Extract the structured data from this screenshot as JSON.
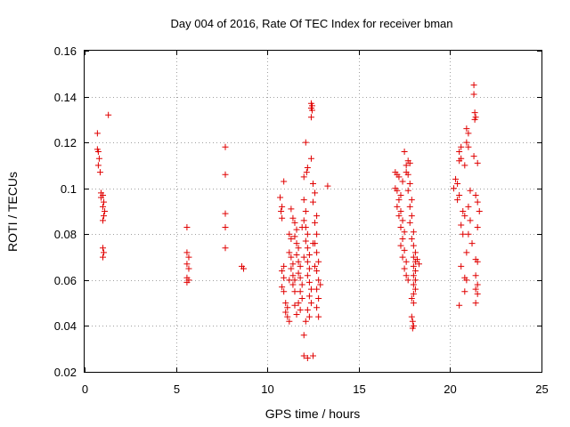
{
  "chart_data": {
    "type": "scatter",
    "title": "Day 004 of 2016, Rate Of TEC Index for receiver bman",
    "xlabel": "GPS time / hours",
    "ylabel": "ROTI / TECUs",
    "xlim": [
      0,
      25
    ],
    "ylim": [
      0.02,
      0.16
    ],
    "x_ticks": [
      0,
      5,
      10,
      15,
      20,
      25
    ],
    "y_ticks": [
      0.02,
      0.04,
      0.06,
      0.08,
      0.1,
      0.12,
      0.14,
      0.16
    ],
    "x_tick_labels": [
      "0",
      "5",
      "10",
      "15",
      "20",
      "25"
    ],
    "y_tick_labels": [
      "0.02",
      "0.04",
      "0.06",
      "0.08",
      "0.1",
      "0.12",
      "0.14",
      "0.16"
    ],
    "grid": true,
    "marker": "+",
    "color": "#e00000",
    "series": [
      {
        "name": "ROTI",
        "points": [
          [
            0.7,
            0.124
          ],
          [
            0.7,
            0.117
          ],
          [
            0.75,
            0.116
          ],
          [
            0.8,
            0.113
          ],
          [
            0.75,
            0.11
          ],
          [
            0.85,
            0.107
          ],
          [
            0.9,
            0.098
          ],
          [
            1.0,
            0.097
          ],
          [
            0.9,
            0.096
          ],
          [
            1.05,
            0.094
          ],
          [
            1.0,
            0.092
          ],
          [
            1.1,
            0.09
          ],
          [
            1.05,
            0.088
          ],
          [
            1.0,
            0.086
          ],
          [
            1.0,
            0.074
          ],
          [
            1.05,
            0.072
          ],
          [
            1.0,
            0.07
          ],
          [
            1.3,
            0.132
          ],
          [
            5.6,
            0.083
          ],
          [
            5.6,
            0.072
          ],
          [
            5.7,
            0.07
          ],
          [
            5.6,
            0.067
          ],
          [
            5.7,
            0.065
          ],
          [
            5.6,
            0.061
          ],
          [
            5.7,
            0.06
          ],
          [
            5.6,
            0.059
          ],
          [
            7.7,
            0.118
          ],
          [
            7.7,
            0.106
          ],
          [
            7.7,
            0.089
          ],
          [
            7.7,
            0.083
          ],
          [
            7.7,
            0.074
          ],
          [
            8.6,
            0.066
          ],
          [
            8.7,
            0.065
          ],
          [
            10.7,
            0.096
          ],
          [
            10.8,
            0.092
          ],
          [
            10.75,
            0.09
          ],
          [
            10.9,
            0.103
          ],
          [
            10.8,
            0.087
          ],
          [
            10.9,
            0.066
          ],
          [
            10.8,
            0.064
          ],
          [
            10.9,
            0.061
          ],
          [
            10.8,
            0.057
          ],
          [
            10.9,
            0.055
          ],
          [
            11.0,
            0.05
          ],
          [
            11.1,
            0.048
          ],
          [
            11.0,
            0.046
          ],
          [
            11.1,
            0.044
          ],
          [
            11.2,
            0.042
          ],
          [
            11.2,
            0.08
          ],
          [
            11.3,
            0.078
          ],
          [
            11.2,
            0.072
          ],
          [
            11.3,
            0.07
          ],
          [
            11.4,
            0.067
          ],
          [
            11.3,
            0.065
          ],
          [
            11.4,
            0.062
          ],
          [
            11.5,
            0.06
          ],
          [
            11.4,
            0.058
          ],
          [
            11.5,
            0.055
          ],
          [
            11.3,
            0.091
          ],
          [
            11.4,
            0.087
          ],
          [
            11.5,
            0.085
          ],
          [
            11.6,
            0.082
          ],
          [
            11.5,
            0.079
          ],
          [
            11.6,
            0.076
          ],
          [
            11.7,
            0.074
          ],
          [
            11.6,
            0.071
          ],
          [
            11.7,
            0.068
          ],
          [
            11.8,
            0.066
          ],
          [
            11.7,
            0.063
          ],
          [
            11.8,
            0.061
          ],
          [
            11.9,
            0.058
          ],
          [
            11.8,
            0.055
          ],
          [
            11.9,
            0.052
          ],
          [
            11.7,
            0.05
          ],
          [
            11.8,
            0.047
          ],
          [
            11.6,
            0.045
          ],
          [
            11.5,
            0.049
          ],
          [
            12.0,
            0.095
          ],
          [
            12.1,
            0.09
          ],
          [
            12.0,
            0.086
          ],
          [
            12.1,
            0.083
          ],
          [
            12.2,
            0.08
          ],
          [
            12.1,
            0.077
          ],
          [
            12.2,
            0.074
          ],
          [
            12.3,
            0.071
          ],
          [
            12.2,
            0.068
          ],
          [
            12.3,
            0.065
          ],
          [
            12.2,
            0.062
          ],
          [
            12.3,
            0.059
          ],
          [
            12.4,
            0.056
          ],
          [
            12.3,
            0.053
          ],
          [
            12.4,
            0.05
          ],
          [
            12.2,
            0.047
          ],
          [
            12.3,
            0.044
          ],
          [
            12.1,
            0.042
          ],
          [
            12.0,
            0.036
          ],
          [
            12.1,
            0.12
          ],
          [
            12.2,
            0.109
          ],
          [
            12.15,
            0.107
          ],
          [
            12.0,
            0.105
          ],
          [
            12.4,
            0.113
          ],
          [
            12.4,
            0.137
          ],
          [
            12.45,
            0.136
          ],
          [
            12.4,
            0.135
          ],
          [
            12.45,
            0.134
          ],
          [
            12.4,
            0.131
          ],
          [
            12.5,
            0.102
          ],
          [
            12.6,
            0.098
          ],
          [
            12.5,
            0.094
          ],
          [
            12.7,
            0.088
          ],
          [
            12.6,
            0.085
          ],
          [
            12.7,
            0.08
          ],
          [
            12.6,
            0.076
          ],
          [
            12.7,
            0.072
          ],
          [
            12.8,
            0.068
          ],
          [
            12.7,
            0.064
          ],
          [
            12.8,
            0.06
          ],
          [
            12.7,
            0.056
          ],
          [
            12.8,
            0.052
          ],
          [
            12.7,
            0.048
          ],
          [
            12.8,
            0.044
          ],
          [
            12.0,
            0.027
          ],
          [
            12.2,
            0.026
          ],
          [
            12.5,
            0.027
          ],
          [
            13.3,
            0.101
          ],
          [
            11.9,
            0.083
          ],
          [
            12.5,
            0.076
          ],
          [
            12.0,
            0.07
          ],
          [
            12.6,
            0.066
          ],
          [
            11.2,
            0.06
          ],
          [
            12.9,
            0.058
          ],
          [
            17.0,
            0.107
          ],
          [
            17.1,
            0.106
          ],
          [
            17.2,
            0.105
          ],
          [
            17.0,
            0.1
          ],
          [
            17.1,
            0.099
          ],
          [
            17.3,
            0.097
          ],
          [
            17.2,
            0.095
          ],
          [
            17.1,
            0.092
          ],
          [
            17.3,
            0.09
          ],
          [
            17.2,
            0.088
          ],
          [
            17.4,
            0.086
          ],
          [
            17.3,
            0.083
          ],
          [
            17.5,
            0.081
          ],
          [
            17.4,
            0.078
          ],
          [
            17.3,
            0.075
          ],
          [
            17.5,
            0.073
          ],
          [
            17.4,
            0.07
          ],
          [
            17.6,
            0.068
          ],
          [
            17.5,
            0.065
          ],
          [
            17.6,
            0.062
          ],
          [
            17.7,
            0.06
          ],
          [
            17.6,
            0.11
          ],
          [
            17.7,
            0.112
          ],
          [
            17.5,
            0.116
          ],
          [
            17.8,
            0.111
          ],
          [
            17.7,
            0.106
          ],
          [
            17.8,
            0.102
          ],
          [
            17.7,
            0.099
          ],
          [
            17.9,
            0.095
          ],
          [
            17.8,
            0.092
          ],
          [
            17.9,
            0.088
          ],
          [
            17.8,
            0.085
          ],
          [
            18.0,
            0.081
          ],
          [
            17.9,
            0.078
          ],
          [
            18.0,
            0.075
          ],
          [
            18.1,
            0.072
          ],
          [
            18.0,
            0.07
          ],
          [
            18.1,
            0.068
          ],
          [
            18.0,
            0.066
          ],
          [
            18.1,
            0.064
          ],
          [
            18.0,
            0.062
          ],
          [
            18.1,
            0.06
          ],
          [
            18.0,
            0.058
          ],
          [
            18.1,
            0.056
          ],
          [
            18.0,
            0.054
          ],
          [
            17.9,
            0.052
          ],
          [
            18.0,
            0.05
          ],
          [
            17.9,
            0.044
          ],
          [
            17.95,
            0.042
          ],
          [
            18.0,
            0.04
          ],
          [
            17.95,
            0.039
          ],
          [
            18.2,
            0.069
          ],
          [
            18.3,
            0.067
          ],
          [
            17.4,
            0.103
          ],
          [
            17.6,
            0.107
          ],
          [
            20.3,
            0.104
          ],
          [
            20.4,
            0.102
          ],
          [
            20.5,
            0.097
          ],
          [
            20.4,
            0.095
          ],
          [
            20.2,
            0.1
          ],
          [
            20.6,
            0.118
          ],
          [
            20.5,
            0.116
          ],
          [
            20.6,
            0.113
          ],
          [
            20.5,
            0.112
          ],
          [
            20.8,
            0.11
          ],
          [
            20.7,
            0.09
          ],
          [
            20.8,
            0.088
          ],
          [
            20.6,
            0.084
          ],
          [
            20.7,
            0.08
          ],
          [
            20.9,
            0.072
          ],
          [
            20.6,
            0.066
          ],
          [
            20.8,
            0.061
          ],
          [
            20.9,
            0.06
          ],
          [
            20.8,
            0.055
          ],
          [
            20.5,
            0.049
          ],
          [
            20.9,
            0.126
          ],
          [
            21.0,
            0.124
          ],
          [
            20.9,
            0.12
          ],
          [
            21.0,
            0.118
          ],
          [
            21.1,
            0.099
          ],
          [
            21.0,
            0.092
          ],
          [
            21.1,
            0.086
          ],
          [
            21.0,
            0.08
          ],
          [
            21.2,
            0.076
          ],
          [
            21.3,
            0.145
          ],
          [
            21.3,
            0.141
          ],
          [
            21.35,
            0.133
          ],
          [
            21.4,
            0.131
          ],
          [
            21.35,
            0.13
          ],
          [
            21.5,
            0.111
          ],
          [
            21.3,
            0.114
          ],
          [
            21.4,
            0.097
          ],
          [
            21.5,
            0.094
          ],
          [
            21.6,
            0.09
          ],
          [
            21.5,
            0.083
          ],
          [
            21.4,
            0.069
          ],
          [
            21.5,
            0.068
          ],
          [
            21.4,
            0.062
          ],
          [
            21.5,
            0.058
          ],
          [
            21.4,
            0.056
          ],
          [
            21.5,
            0.054
          ],
          [
            21.4,
            0.05
          ]
        ]
      }
    ]
  }
}
